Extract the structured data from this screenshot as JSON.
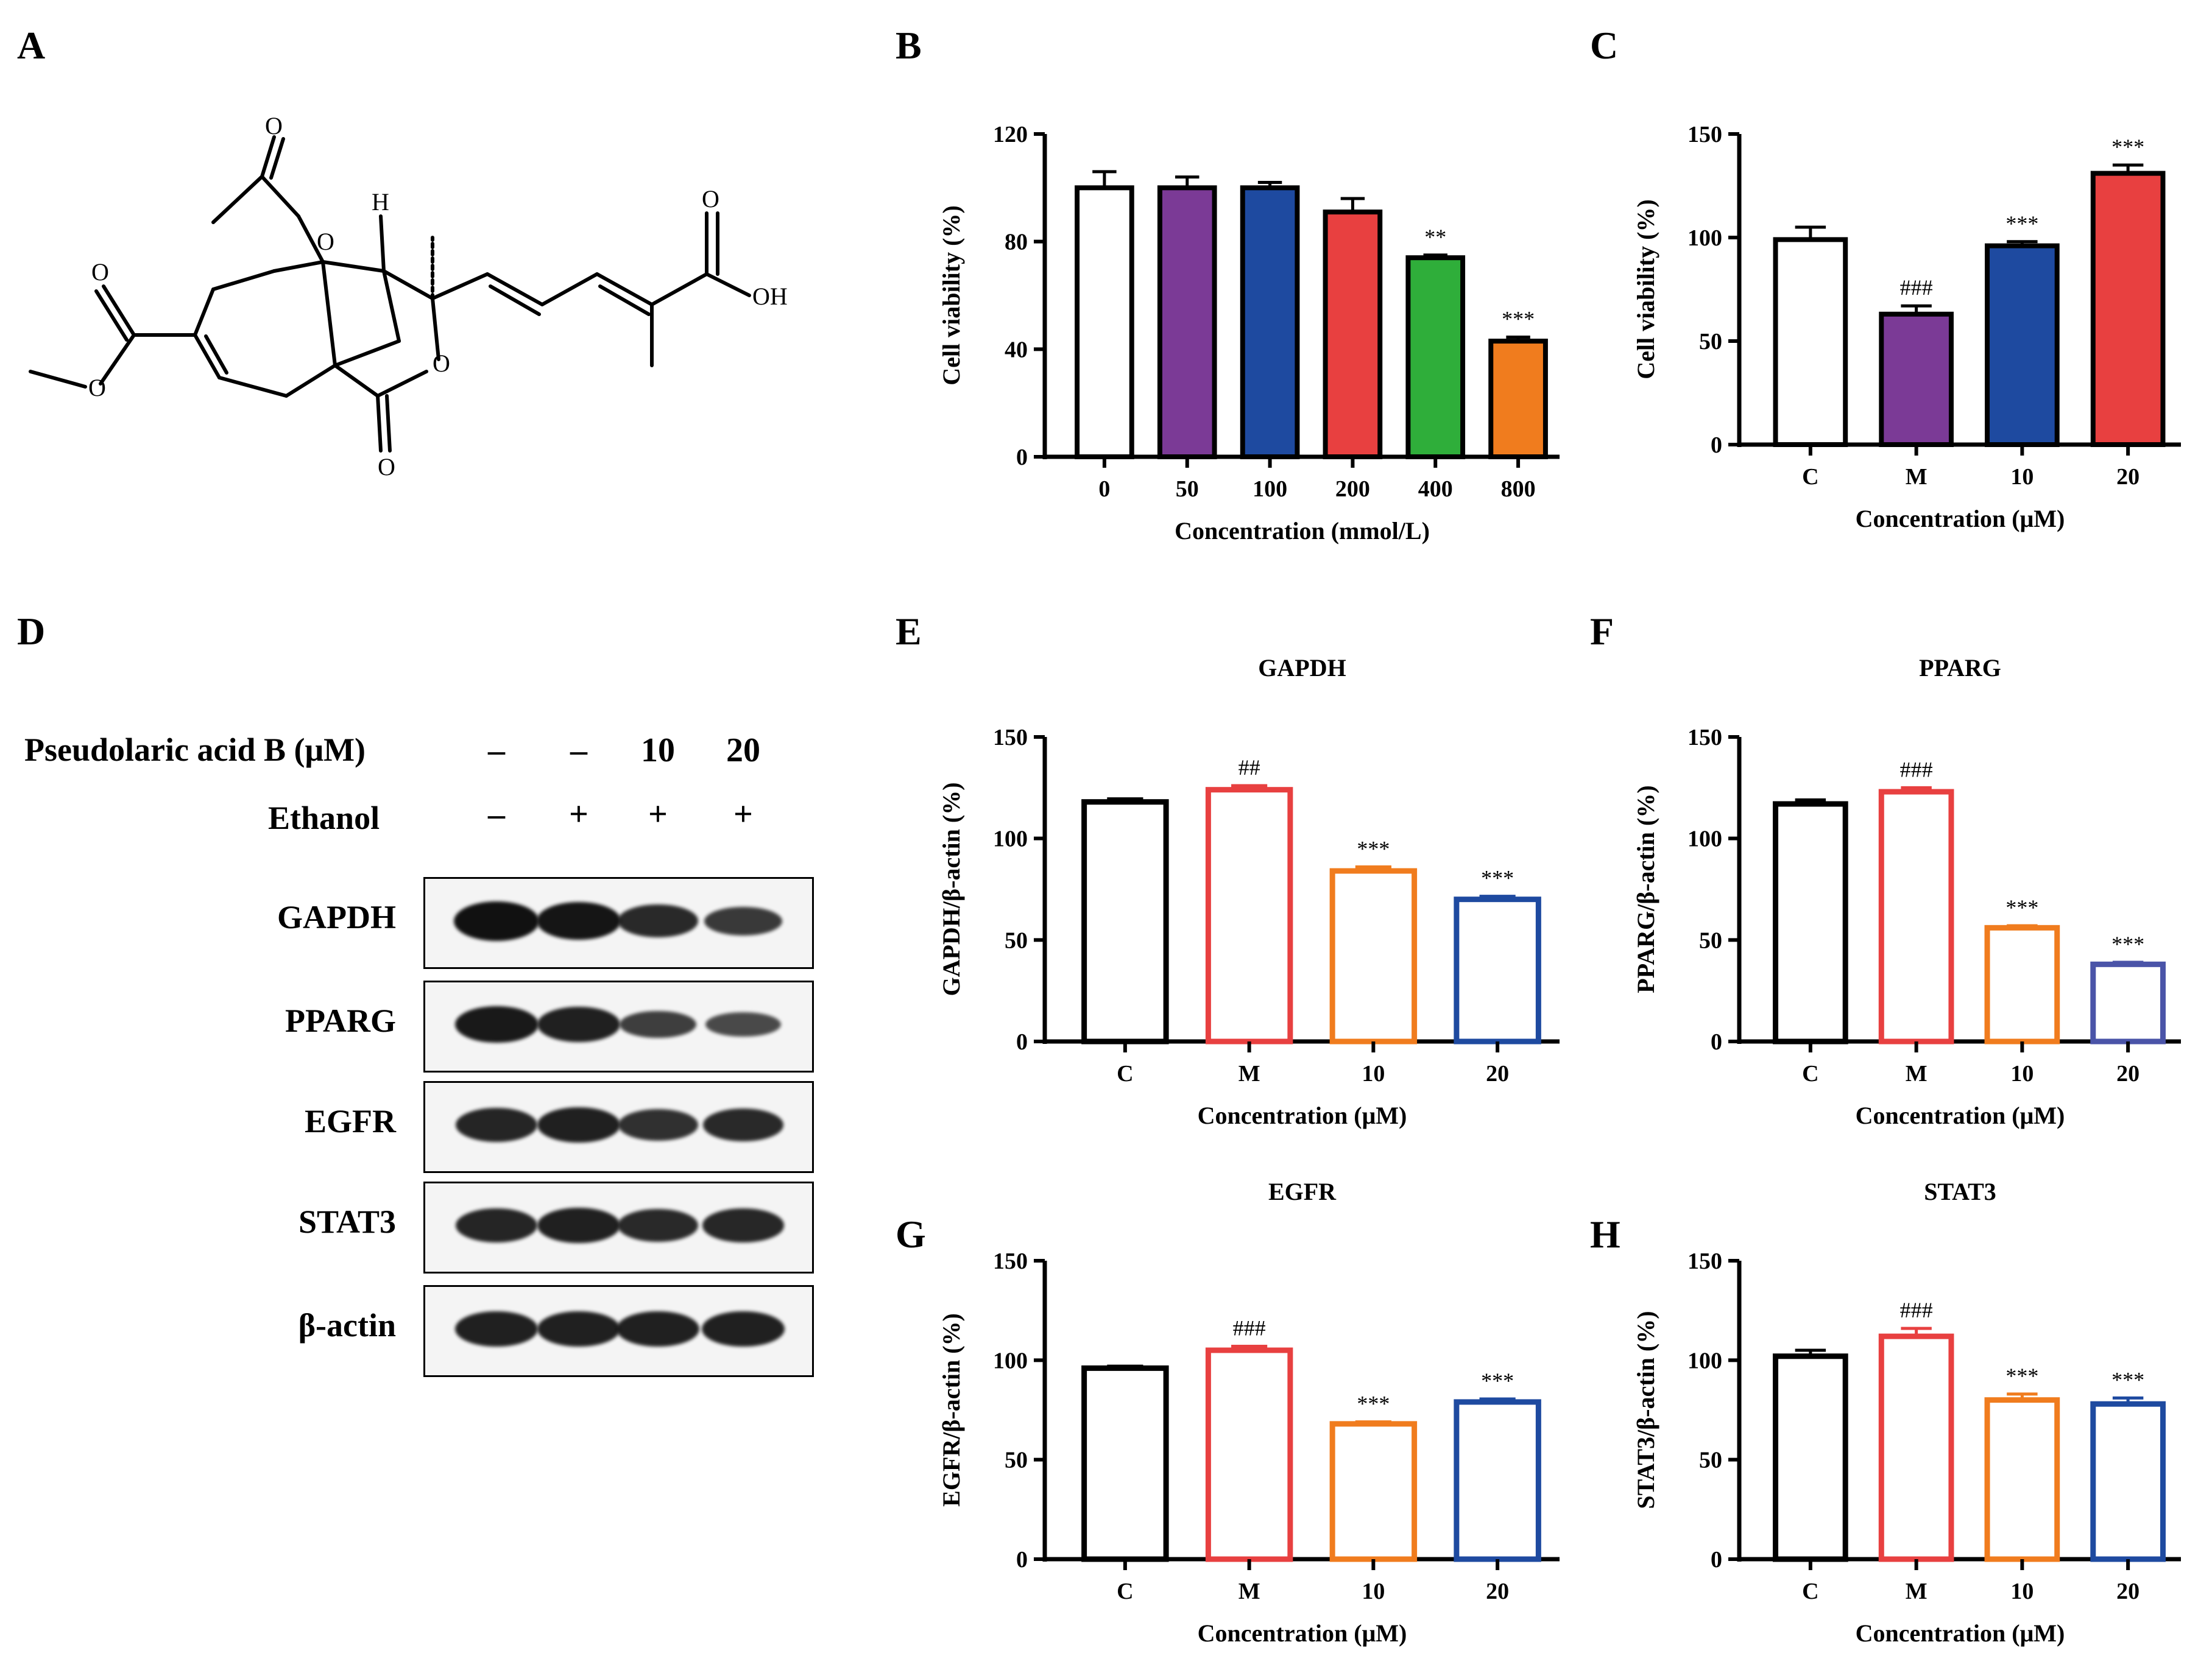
{
  "panels": {
    "A": "A",
    "B": "B",
    "C": "C",
    "D": "D",
    "E": "E",
    "F": "F",
    "G": "G",
    "H": "H"
  },
  "structure": {
    "labels": {
      "oh": "OH",
      "h": "H",
      "o": "O"
    }
  },
  "western_blot": {
    "treatment_label": "Pseudolaric acid B (μM)",
    "ethanol_label": "Ethanol",
    "treatment_values": [
      "–",
      "–",
      "10",
      "20"
    ],
    "ethanol_values": [
      "–",
      "+",
      "+",
      "+"
    ],
    "rows": [
      {
        "label": "GAPDH",
        "intensities": [
          1.0,
          0.95,
          0.75,
          0.6
        ]
      },
      {
        "label": "PPARG",
        "intensities": [
          0.9,
          0.85,
          0.55,
          0.45
        ]
      },
      {
        "label": "EGFR",
        "intensities": [
          0.8,
          0.85,
          0.7,
          0.75
        ]
      },
      {
        "label": "STAT3",
        "intensities": [
          0.8,
          0.85,
          0.75,
          0.78
        ]
      },
      {
        "label": "β-actin",
        "intensities": [
          0.85,
          0.85,
          0.85,
          0.85
        ]
      }
    ]
  },
  "chart_data": [
    {
      "id": "B",
      "type": "bar",
      "title": "",
      "xlabel": "Concentration (mmol/L)",
      "ylabel": "Cell viability (%)",
      "ylim": [
        0,
        120
      ],
      "yticks": [
        0,
        40,
        80,
        120
      ],
      "fill": true,
      "categories": [
        "0",
        "50",
        "100",
        "200",
        "400",
        "800"
      ],
      "values": [
        100,
        100,
        100,
        91,
        74,
        43
      ],
      "errors": [
        6,
        4,
        2,
        5,
        1,
        1.5
      ],
      "colors": [
        "#ffffff",
        "#7b3a96",
        "#1e4aa0",
        "#e84040",
        "#2fae3a",
        "#f07c1e"
      ],
      "annotations": [
        "",
        "",
        "",
        "",
        "**",
        "***"
      ]
    },
    {
      "id": "C",
      "type": "bar",
      "title": "",
      "xlabel": "Concentration (μM)",
      "ylabel": "Cell viability (%)",
      "ylim": [
        0,
        150
      ],
      "yticks": [
        0,
        50,
        100,
        150
      ],
      "fill": true,
      "categories": [
        "C",
        "M",
        "10",
        "20"
      ],
      "values": [
        99,
        63,
        96,
        131
      ],
      "errors": [
        6,
        4,
        2,
        4
      ],
      "colors": [
        "#ffffff",
        "#7b3a96",
        "#1e4aa0",
        "#e84040"
      ],
      "annotations": [
        "",
        "###",
        "***",
        "***"
      ]
    },
    {
      "id": "E",
      "type": "bar",
      "title": "GAPDH",
      "xlabel": "Concentration (μM)",
      "ylabel": "GAPDH/β-actin (%)",
      "ylim": [
        0,
        150
      ],
      "yticks": [
        0,
        50,
        100,
        150
      ],
      "fill": false,
      "categories": [
        "C",
        "M",
        "10",
        "20"
      ],
      "values": [
        118,
        124,
        84,
        70
      ],
      "errors": [
        1.5,
        2,
        2,
        1.5
      ],
      "colors": [
        "#000000",
        "#e84040",
        "#f07c1e",
        "#1e4aa0"
      ],
      "annotations": [
        "",
        "##",
        "***",
        "***"
      ]
    },
    {
      "id": "F",
      "type": "bar",
      "title": "PPARG",
      "xlabel": "Concentration (μM)",
      "ylabel": "PPARG/β-actin (%)",
      "ylim": [
        0,
        150
      ],
      "yticks": [
        0,
        50,
        100,
        150
      ],
      "fill": false,
      "categories": [
        "C",
        "M",
        "10",
        "20"
      ],
      "values": [
        117,
        123,
        56,
        38
      ],
      "errors": [
        2,
        2,
        1,
        1
      ],
      "colors": [
        "#000000",
        "#e84040",
        "#f07c1e",
        "#4a54a8"
      ],
      "annotations": [
        "",
        "###",
        "***",
        "***"
      ]
    },
    {
      "id": "G",
      "type": "bar",
      "title": "EGFR",
      "xlabel": "Concentration (μM)",
      "ylabel": "EGFR/β-actin (%)",
      "ylim": [
        0,
        150
      ],
      "yticks": [
        0,
        50,
        100,
        150
      ],
      "fill": false,
      "categories": [
        "C",
        "M",
        "10",
        "20"
      ],
      "values": [
        96,
        105,
        68,
        79
      ],
      "errors": [
        1,
        2,
        1,
        1.5
      ],
      "colors": [
        "#000000",
        "#e84040",
        "#f07c1e",
        "#1e4aa0"
      ],
      "annotations": [
        "",
        "###",
        "***",
        "***"
      ]
    },
    {
      "id": "H",
      "type": "bar",
      "title": "STAT3",
      "xlabel": "Concentration (μM)",
      "ylabel": "STAT3/β-actin (%)",
      "ylim": [
        0,
        150
      ],
      "yticks": [
        0,
        50,
        100,
        150
      ],
      "fill": false,
      "categories": [
        "C",
        "M",
        "10",
        "20"
      ],
      "values": [
        102,
        112,
        80,
        78
      ],
      "errors": [
        3,
        4,
        3,
        3
      ],
      "colors": [
        "#000000",
        "#e84040",
        "#f07c1e",
        "#1e4aa0"
      ],
      "annotations": [
        "",
        "###",
        "***",
        "***"
      ]
    }
  ]
}
